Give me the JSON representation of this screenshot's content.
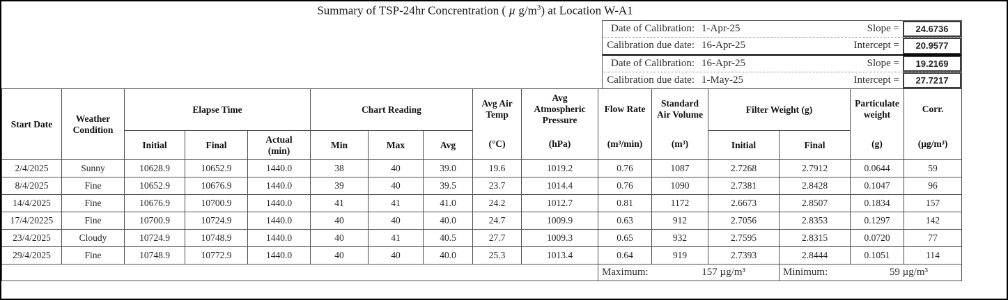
{
  "title": {
    "part1": "Summary of TSP-24hr Concrentration ( ",
    "mu": "µ",
    "part2": " g/m",
    "sup": "3",
    "part3": ") at Location W-A1"
  },
  "calibration": {
    "rows": [
      {
        "label": "Date of Calibration:",
        "date": "1-Apr-25",
        "param": "Slope =",
        "value": "24.6736"
      },
      {
        "label": "Calibration due date:",
        "date": "16-Apr-25",
        "param": "Intercept =",
        "value": "20.9577"
      },
      {
        "label": "Date of Calibration:",
        "date": "16-Apr-25",
        "param": "Slope =",
        "value": "19.2169"
      },
      {
        "label": "Calibration due date:",
        "date": "1-May-25",
        "param": "Intercept =",
        "value": "27.7217"
      }
    ]
  },
  "table": {
    "header": {
      "start_date": "Start Date",
      "weather_condition": "Weather Condition",
      "elapse_time": "Elapse Time",
      "chart_reading": "Chart Reading",
      "avg_air_temp": {
        "title": "Avg Air Temp",
        "unit": "(°C)"
      },
      "avg_atm_pressure": {
        "title": "Avg Atmospheric Pressure",
        "unit": "(hPa)"
      },
      "flow_rate": {
        "title": "Flow Rate",
        "unit": "(m³/min)"
      },
      "std_air_volume": {
        "title": "Standard Air Volume",
        "unit": "(m³)"
      },
      "filter_weight": "Filter Weight (g)",
      "particulate_weight": {
        "title": "Particulate weight",
        "unit": "(g)"
      },
      "corr": {
        "title": "Corr.",
        "unit": "(µg/m³)"
      },
      "sub": [
        "Initial",
        "Final",
        "Actual",
        "Min",
        "Max",
        "Avg",
        "Initial",
        "Final"
      ],
      "actual_unit": "(min)"
    },
    "rows": [
      [
        "2/4/2025",
        "Sunny",
        "10628.9",
        "10652.9",
        "1440.0",
        "38",
        "40",
        "39.0",
        "19.6",
        "1019.2",
        "0.76",
        "1087",
        "2.7268",
        "2.7912",
        "0.0644",
        "59"
      ],
      [
        "8/4/2025",
        "Fine",
        "10652.9",
        "10676.9",
        "1440.0",
        "39",
        "40",
        "39.5",
        "23.7",
        "1014.4",
        "0.76",
        "1090",
        "2.7381",
        "2.8428",
        "0.1047",
        "96"
      ],
      [
        "14/4/2025",
        "Fine",
        "10676.9",
        "10700.9",
        "1440.0",
        "41",
        "41",
        "41.0",
        "24.2",
        "1012.7",
        "0.81",
        "1172",
        "2.6673",
        "2.8507",
        "0.1834",
        "157"
      ],
      [
        "17/4/20225",
        "Fine",
        "10700.9",
        "10724.9",
        "1440.0",
        "40",
        "40",
        "40.0",
        "24.7",
        "1009.9",
        "0.63",
        "912",
        "2.7056",
        "2.8353",
        "0.1297",
        "142"
      ],
      [
        "23/4/2025",
        "Cloudy",
        "10724.9",
        "10748.9",
        "1440.0",
        "40",
        "41",
        "40.5",
        "27.7",
        "1009.3",
        "0.65",
        "932",
        "2.7595",
        "2.8315",
        "0.0720",
        "77"
      ],
      [
        "29/4/2025",
        "Fine",
        "10748.9",
        "10772.9",
        "1440.0",
        "40",
        "40",
        "40.0",
        "25.3",
        "1013.4",
        "0.64",
        "919",
        "2.7393",
        "2.8444",
        "0.1051",
        "114"
      ]
    ]
  },
  "summary": {
    "max_label": "Maximum:",
    "max_value": "157 µg/m³",
    "min_label": "Minimum:",
    "min_value": "59 µg/m³"
  }
}
